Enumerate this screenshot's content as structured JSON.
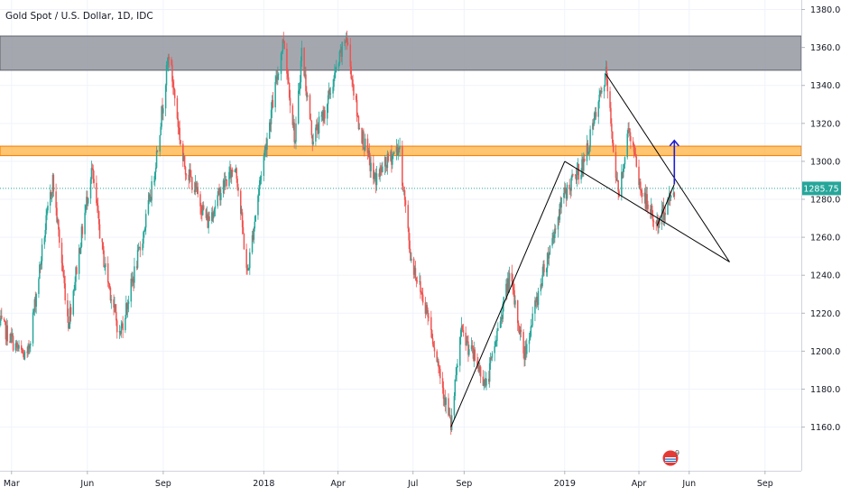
{
  "chart_data": {
    "type": "candlestick",
    "title": "Gold Spot / U.S. Dollar, 1D, IDC",
    "y_ticks": [
      "1380.00",
      "1360.00",
      "1340.00",
      "1320.00",
      "1300.00",
      "1280.00",
      "1260.00",
      "1240.00",
      "1220.00",
      "1200.00",
      "1180.00",
      "1160.00"
    ],
    "y_tick_values": [
      1380,
      1360,
      1340,
      1320,
      1300,
      1280,
      1260,
      1240,
      1220,
      1200,
      1180,
      1160
    ],
    "x_ticks": [
      "Mar",
      "Jun",
      "Sep",
      "2018",
      "Apr",
      "Jul",
      "Sep",
      "2019",
      "Apr",
      "Jun",
      "Sep"
    ],
    "x_tick_dates": [
      "2017-03-01",
      "2017-06-01",
      "2017-09-01",
      "2018-01-01",
      "2018-04-01",
      "2018-07-01",
      "2018-09-01",
      "2019-01-01",
      "2019-04-01",
      "2019-06-01",
      "2019-09-01"
    ],
    "ylim": [
      1137,
      1385
    ],
    "xlim": [
      "2017-02-15",
      "2019-10-15"
    ],
    "last_price": "1285.75",
    "last_price_value": 1285.75,
    "price_path": [
      [
        "2017-02-15",
        1215
      ],
      [
        "2017-03-10",
        1200
      ],
      [
        "2017-03-20",
        1196
      ],
      [
        "2017-04-10",
        1262
      ],
      [
        "2017-04-20",
        1290
      ],
      [
        "2017-05-09",
        1215
      ],
      [
        "2017-06-06",
        1296
      ],
      [
        "2017-06-20",
        1250
      ],
      [
        "2017-07-10",
        1208
      ],
      [
        "2017-08-07",
        1260
      ],
      [
        "2017-08-20",
        1290
      ],
      [
        "2017-09-08",
        1357
      ],
      [
        "2017-09-25",
        1300
      ],
      [
        "2017-10-10",
        1285
      ],
      [
        "2017-10-25",
        1268
      ],
      [
        "2017-11-10",
        1285
      ],
      [
        "2017-11-28",
        1298
      ],
      [
        "2017-12-12",
        1240
      ],
      [
        "2017-12-28",
        1292
      ],
      [
        "2018-01-25",
        1365
      ],
      [
        "2018-02-08",
        1310
      ],
      [
        "2018-02-16",
        1358
      ],
      [
        "2018-03-01",
        1312
      ],
      [
        "2018-03-15",
        1325
      ],
      [
        "2018-04-11",
        1366
      ],
      [
        "2018-04-25",
        1322
      ],
      [
        "2018-05-15",
        1290
      ],
      [
        "2018-06-14",
        1308
      ],
      [
        "2018-06-28",
        1250
      ],
      [
        "2018-07-20",
        1218
      ],
      [
        "2018-08-16",
        1160
      ],
      [
        "2018-08-28",
        1210
      ],
      [
        "2018-09-15",
        1195
      ],
      [
        "2018-09-28",
        1182
      ],
      [
        "2018-10-26",
        1240
      ],
      [
        "2018-11-13",
        1198
      ],
      [
        "2018-12-05",
        1240
      ],
      [
        "2018-12-31",
        1282
      ],
      [
        "2019-01-25",
        1300
      ],
      [
        "2019-02-20",
        1346
      ],
      [
        "2019-03-07",
        1282
      ],
      [
        "2019-03-20",
        1318
      ],
      [
        "2019-04-03",
        1285
      ],
      [
        "2019-04-23",
        1266
      ],
      [
        "2019-05-14",
        1285.75
      ]
    ]
  },
  "zones": {
    "resistance_top": {
      "from": 1348,
      "to": 1366,
      "color": "#9598a1"
    },
    "resistance_mid": {
      "from": 1303,
      "to": 1308,
      "color": "#ffb74d"
    }
  },
  "colors": {
    "up": "#26a69a",
    "down": "#ef5350",
    "price_line": "#26a69a",
    "trend_line": "#000000",
    "arrow": "#1f1fd1",
    "axis_text": "#131722",
    "grid": "#f0f3fa"
  },
  "drawings": {
    "rising_wedge": [
      [
        "2018-08-16",
        1160
      ],
      [
        "2019-01-01",
        1300
      ]
    ],
    "triangle_top": [
      [
        "2019-02-20",
        1346
      ],
      [
        "2019-07-20",
        1247
      ]
    ],
    "triangle_bottom": [
      [
        "2019-01-01",
        1300
      ],
      [
        "2019-07-20",
        1247
      ]
    ],
    "lower_leg": [
      [
        "2019-04-23",
        1266
      ],
      [
        "2019-05-14",
        1288
      ]
    ],
    "arrow": {
      "date": "2019-05-14",
      "from": 1288,
      "to": 1311
    }
  },
  "logo": {
    "name": "flag-badge-icon",
    "count": "9"
  }
}
